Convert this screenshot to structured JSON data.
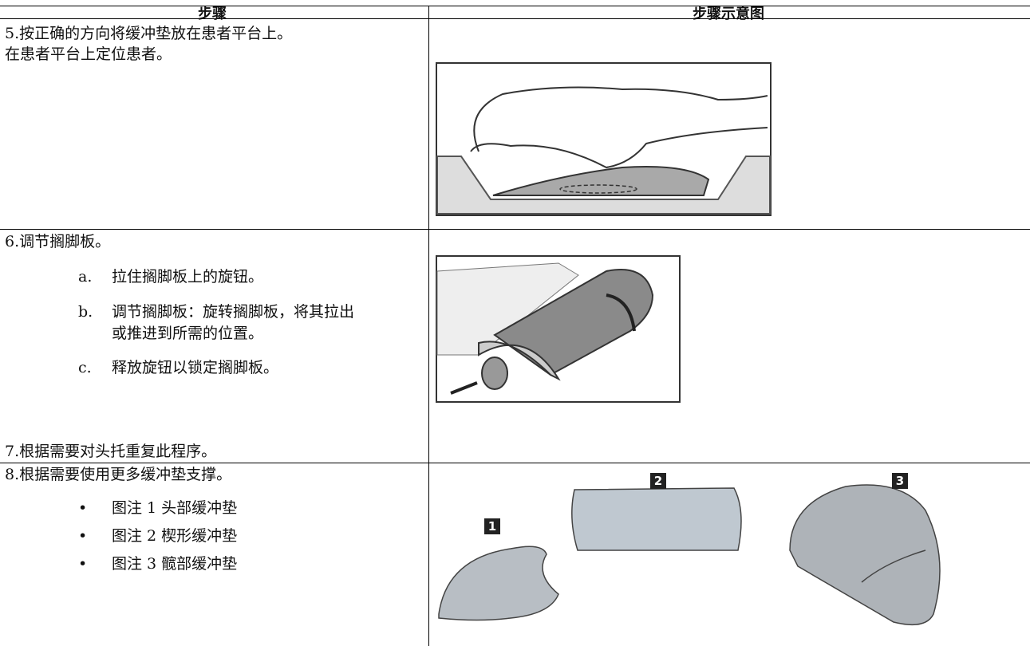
{
  "table": {
    "headers": [
      "步骤",
      "步骤示意图"
    ],
    "rows": [
      {
        "step": [
          "5.按正确的方向将缓冲垫放在患者平台上。",
          "在患者平台上定位患者。"
        ]
      },
      {
        "step": [
          "6.调节搁脚板。"
        ],
        "items": [
          {
            "marker": "a.",
            "text": [
              "拉住搁脚板上的旋钮。"
            ]
          },
          {
            "marker": "b.",
            "text": [
              "调节搁脚板：旋转搁脚板，将其拉出",
              "或推进到所需的位置。"
            ]
          },
          {
            "marker": "c.",
            "text": [
              "释放旋钮以锁定搁脚板。"
            ]
          }
        ],
        "footer": "7.根据需要对头托重复此程序。"
      },
      {
        "step": [
          "8.根据需要使用更多缓冲垫支撑。"
        ],
        "items": [
          {
            "marker": "•",
            "text": [
              "图注 1 头部缓冲垫"
            ]
          },
          {
            "marker": "•",
            "text": [
              "图注 2 楔形缓冲垫"
            ]
          },
          {
            "marker": "•",
            "text": [
              "图注 3 髋部缓冲垫"
            ]
          }
        ],
        "callouts": [
          "1",
          "2",
          "3"
        ]
      }
    ]
  }
}
